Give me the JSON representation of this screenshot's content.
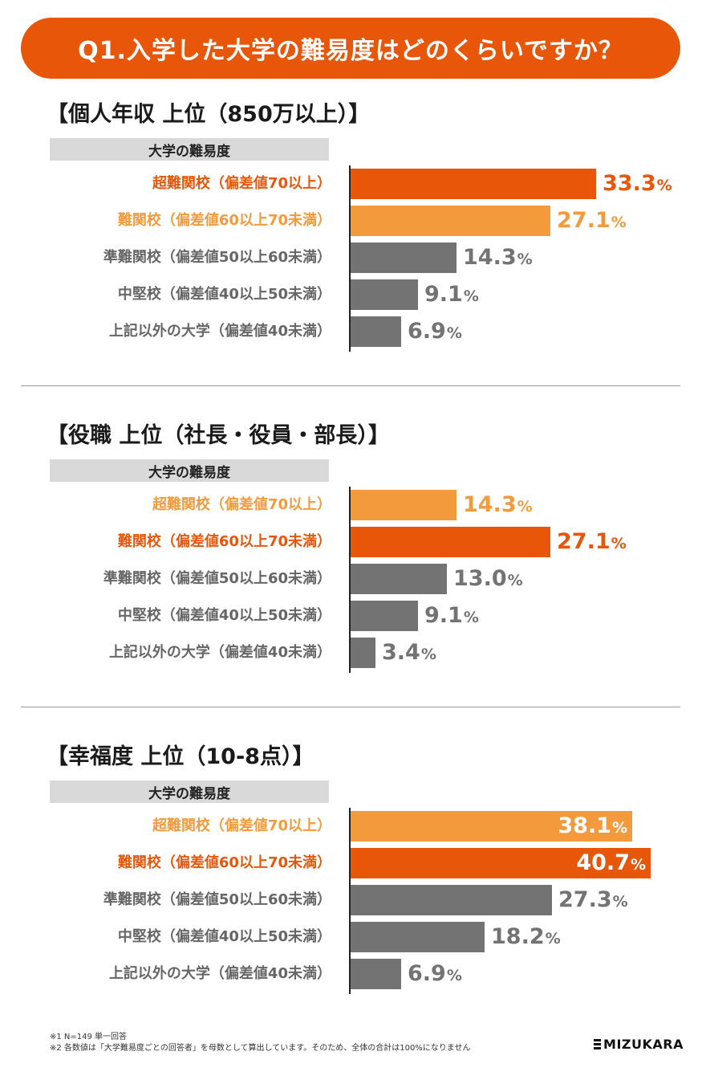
{
  "header": {
    "title": "Q1.入学した大学の難易度はどのくらいですか？"
  },
  "colors": {
    "dark_orange": "#e8560a",
    "light_orange": "#f39a3c",
    "gray": "#737373",
    "label_gray": "#666666"
  },
  "chart_data": [
    {
      "type": "bar",
      "title": "【個人年収 上位（850万以上）】",
      "header": "大学の難易度",
      "categories": [
        "超難関校（偏差値70以上）",
        "難関校（偏差値60以上70未満）",
        "準難関校（偏差値50以上60未満）",
        "中堅校（偏差値40以上50未満）",
        "上記以外の大学（偏差値40未満）"
      ],
      "values": [
        33.3,
        27.1,
        14.3,
        9.1,
        6.9
      ],
      "display": [
        "33.3",
        "27.1",
        "14.3",
        "9.1",
        "6.9"
      ],
      "unit": "%",
      "highlight": [
        "dark",
        "light",
        "gray",
        "gray",
        "gray"
      ]
    },
    {
      "type": "bar",
      "title": "【役職 上位（社長・役員・部長）】",
      "header": "大学の難易度",
      "categories": [
        "超難関校（偏差値70以上）",
        "難関校（偏差値60以上70未満）",
        "準難関校（偏差値50以上60未満）",
        "中堅校（偏差値40以上50未満）",
        "上記以外の大学（偏差値40未満）"
      ],
      "values": [
        14.3,
        27.1,
        13.0,
        9.1,
        3.4
      ],
      "display": [
        "14.3",
        "27.1",
        "13.0",
        "9.1",
        "3.4"
      ],
      "unit": "%",
      "highlight": [
        "light",
        "dark",
        "gray",
        "gray",
        "gray"
      ]
    },
    {
      "type": "bar",
      "title": "【幸福度 上位（10-8点）】",
      "header": "大学の難易度",
      "categories": [
        "超難関校（偏差値70以上）",
        "難関校（偏差値60以上70未満）",
        "準難関校（偏差値50以上60未満）",
        "中堅校（偏差値40以上50未満）",
        "上記以外の大学（偏差値40未満）"
      ],
      "values": [
        38.1,
        40.7,
        27.3,
        18.2,
        6.9
      ],
      "display": [
        "38.1",
        "40.7",
        "27.3",
        "18.2",
        "6.9"
      ],
      "unit": "%",
      "highlight": [
        "light",
        "dark",
        "gray",
        "gray",
        "gray"
      ]
    }
  ],
  "notes": [
    "※1 N=149 単一回答",
    "※2 各数値は「大学難易度ごとの回答者」を母数として算出しています。そのため、全体の合計は100%になりません"
  ],
  "logo": {
    "text": "MIZUKARA",
    "icon": "stacked-bars-logo-icon"
  }
}
